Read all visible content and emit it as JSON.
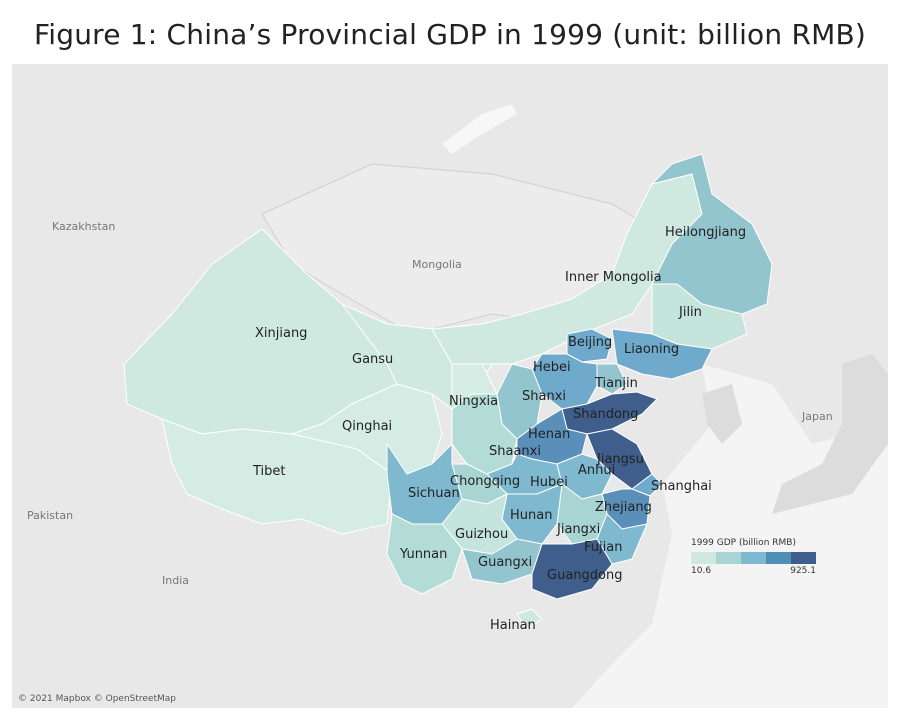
{
  "title": "Figure 1: China’s Provincial GDP in 1999 (unit: billion RMB)",
  "attribution": "© 2021 Mapbox © OpenStreetMap",
  "legend": {
    "title": "1999 GDP (billion RMB)",
    "min_label": "10.6",
    "max_label": "925.1",
    "colors": [
      "#cfe9e1",
      "#a8d5d4",
      "#7fb9cf",
      "#4e8fb8",
      "#3f5e8c"
    ]
  },
  "neighbors": [
    {
      "key": "kazakhstan",
      "label": "Kazakhstan"
    },
    {
      "key": "mongolia",
      "label": "Mongolia"
    },
    {
      "key": "japan",
      "label": "Japan"
    },
    {
      "key": "pakistan",
      "label": "Pakistan"
    },
    {
      "key": "india",
      "label": "India"
    }
  ],
  "provinces": [
    {
      "key": "heilongjiang",
      "label": "Heilongjiang",
      "color": "#93c5cf"
    },
    {
      "key": "inner-mongolia",
      "label": "Inner Mongolia",
      "color": "#cfe9e1"
    },
    {
      "key": "jilin",
      "label": "Jilin",
      "color": "#c4e4dc"
    },
    {
      "key": "liaoning",
      "label": "Liaoning",
      "color": "#6fa9cb"
    },
    {
      "key": "beijing",
      "label": "Beijing",
      "color": "#6fa9cb"
    },
    {
      "key": "tianjin",
      "label": "Tianjin",
      "color": "#93c5cf"
    },
    {
      "key": "hebei",
      "label": "Hebei",
      "color": "#6fa9cb"
    },
    {
      "key": "shanxi",
      "label": "Shanxi",
      "color": "#93c5cf"
    },
    {
      "key": "shandong",
      "label": "Shandong",
      "color": "#3f5e8c"
    },
    {
      "key": "henan",
      "label": "Henan",
      "color": "#5a8fba"
    },
    {
      "key": "jiangsu",
      "label": "Jiangsu",
      "color": "#3f5e8c"
    },
    {
      "key": "anhui",
      "label": "Anhui",
      "color": "#7fb9cf"
    },
    {
      "key": "shanghai",
      "label": "Shanghai",
      "color": "#6fa9cb"
    },
    {
      "key": "zhejiang",
      "label": "Zhejiang",
      "color": "#5a8fba"
    },
    {
      "key": "fujian",
      "label": "Fujian",
      "color": "#7fb9cf"
    },
    {
      "key": "jiangxi",
      "label": "Jiangxi",
      "color": "#a8d5d4"
    },
    {
      "key": "hubei",
      "label": "Hubei",
      "color": "#7fb9cf"
    },
    {
      "key": "hunan",
      "label": "Hunan",
      "color": "#7fb9cf"
    },
    {
      "key": "guangdong",
      "label": "Guangdong",
      "color": "#3f5e8c"
    },
    {
      "key": "guangxi",
      "label": "Guangxi",
      "color": "#93c5cf"
    },
    {
      "key": "hainan",
      "label": "Hainan",
      "color": "#cfe9e1"
    },
    {
      "key": "guizhou",
      "label": "Guizhou",
      "color": "#c4e4dc"
    },
    {
      "key": "yunnan",
      "label": "Yunnan",
      "color": "#b4dcd6"
    },
    {
      "key": "sichuan",
      "label": "Sichuan",
      "color": "#7fb9cf"
    },
    {
      "key": "chongqing",
      "label": "Chongqing",
      "color": "#a8d5d4"
    },
    {
      "key": "shaanxi",
      "label": "Shaanxi",
      "color": "#b4dcd6"
    },
    {
      "key": "gansu",
      "label": "Gansu",
      "color": "#cfe9e1"
    },
    {
      "key": "ningxia",
      "label": "Ningxia",
      "color": "#d5ece4"
    },
    {
      "key": "qinghai",
      "label": "Qinghai",
      "color": "#d5ece4"
    },
    {
      "key": "xinjiang",
      "label": "Xinjiang",
      "color": "#cfe9e1"
    },
    {
      "key": "tibet",
      "label": "Tibet",
      "color": "#d5ece4"
    }
  ]
}
